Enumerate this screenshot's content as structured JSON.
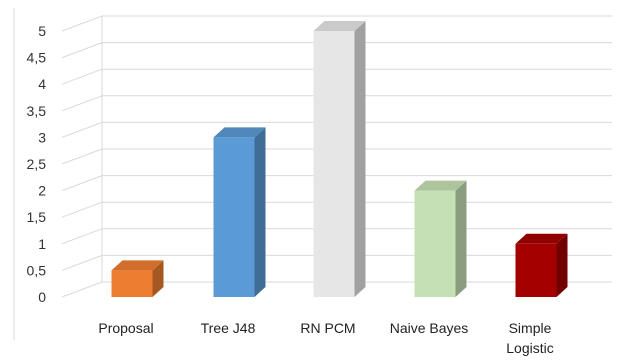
{
  "chart_data": {
    "type": "bar",
    "style": "3d-column",
    "title": "",
    "xlabel": "",
    "ylabel": "",
    "categories": [
      "Proposal",
      "Tree J48",
      "RN PCM",
      "Naive Bayes",
      "Simple Logistic"
    ],
    "category_lines": [
      [
        "Proposal"
      ],
      [
        "Tree J48"
      ],
      [
        "RN PCM"
      ],
      [
        "Naive Bayes"
      ],
      [
        "Simple",
        "Logistic"
      ]
    ],
    "values": [
      0.5,
      3,
      5,
      2,
      1
    ],
    "colors": [
      "#ed7d31",
      "#5b9bd5",
      "#e7e6e6",
      "#c5e0b4",
      "#a50000"
    ],
    "ylim": [
      0,
      5
    ],
    "yticks": [
      0,
      0.5,
      1,
      1.5,
      2,
      2.5,
      3,
      3.5,
      4,
      4.5,
      5
    ],
    "ytick_labels": [
      "0",
      "0,5",
      "1",
      "1,5",
      "2",
      "2,5",
      "3",
      "3,5",
      "4",
      "4,5",
      "5"
    ],
    "grid": true,
    "legend": "none"
  }
}
